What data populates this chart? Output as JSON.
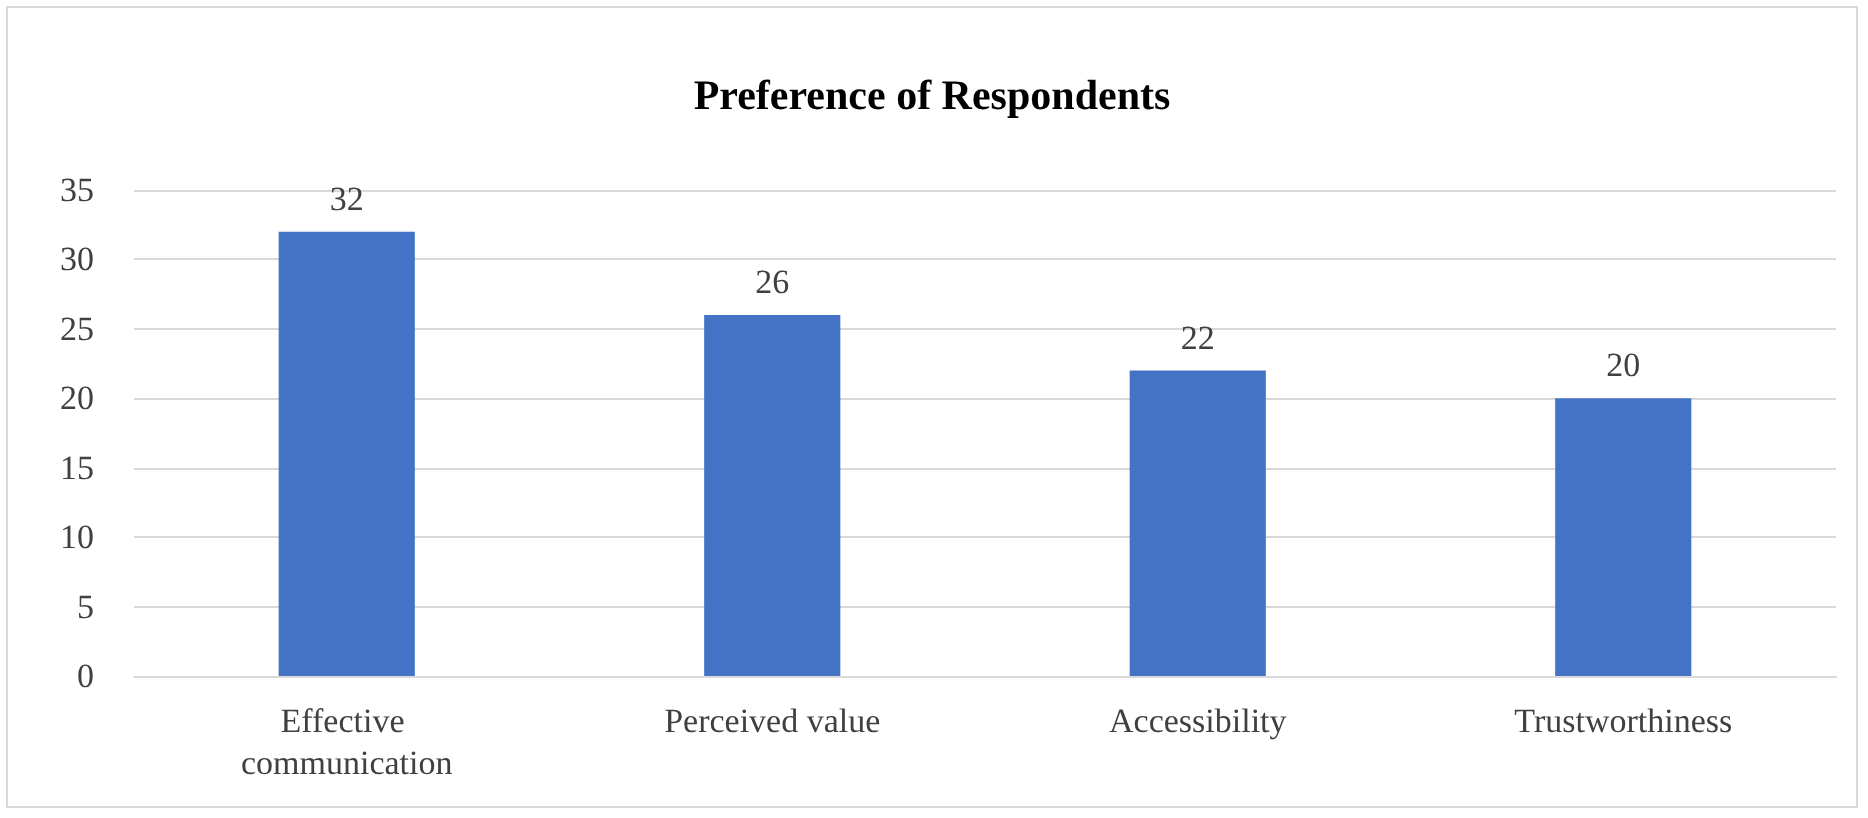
{
  "chart_data": {
    "type": "bar",
    "title": "Preference of Respondents",
    "categories": [
      "Effective communication",
      "Perceived value",
      "Accessibility",
      "Trustworthiness"
    ],
    "values": [
      32,
      26,
      22,
      20
    ],
    "color": "#4472c4",
    "ylim": [
      0,
      35
    ],
    "yticks": [
      0,
      5,
      10,
      15,
      20,
      25,
      30,
      35
    ],
    "grid": "y",
    "data_labels": true
  }
}
